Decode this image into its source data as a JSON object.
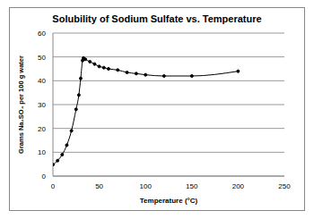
{
  "chart_data": {
    "type": "line",
    "title": "Solubility of Sodium Sulfate vs. Temperature",
    "x_label": "Temperature (°C)",
    "y_label": "Grams Na₂SO₄ per 100 g water",
    "x": [
      0,
      5,
      10,
      15,
      20,
      25,
      28,
      30,
      32,
      33,
      35,
      40,
      45,
      50,
      55,
      60,
      70,
      80,
      90,
      100,
      120,
      150,
      200
    ],
    "values": [
      4.8,
      6.5,
      9,
      13,
      19,
      28,
      34,
      41,
      48.5,
      49.5,
      49,
      48,
      47,
      46,
      45.5,
      45,
      44.5,
      43.5,
      43,
      42.5,
      42,
      42,
      44
    ],
    "xlim": [
      0,
      250
    ],
    "ylim": [
      0,
      60
    ],
    "xticks": [
      0,
      50,
      100,
      150,
      200,
      250
    ],
    "yticks": [
      0,
      10,
      20,
      30,
      40,
      50,
      60
    ],
    "grid": true,
    "color": "#000000",
    "marker": "circle"
  }
}
